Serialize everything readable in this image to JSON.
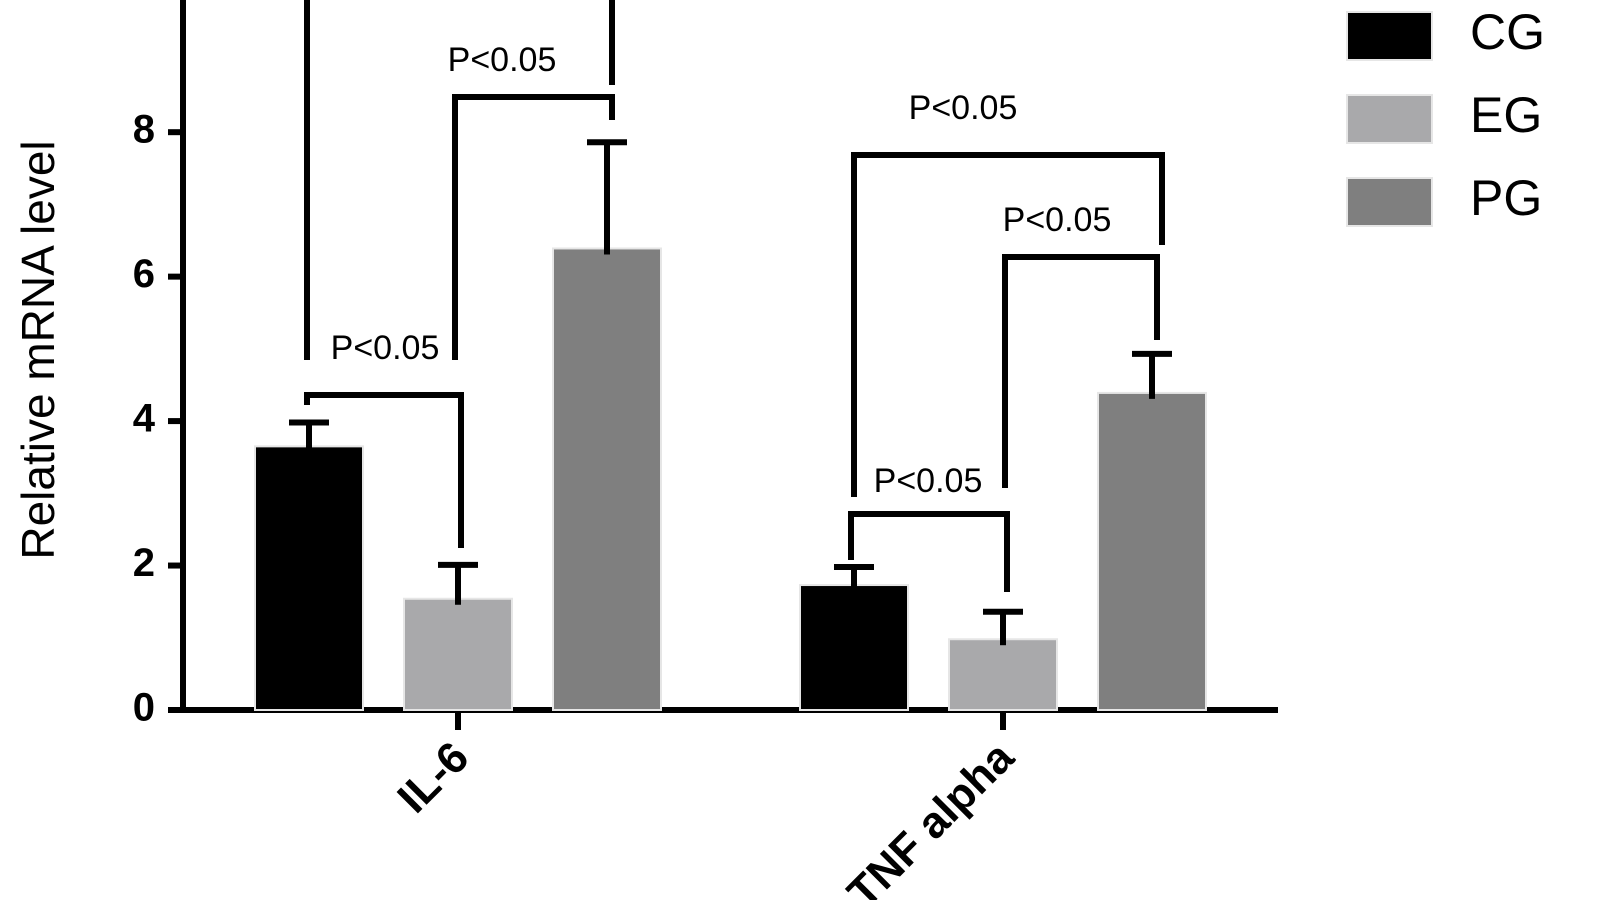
{
  "chart_data": {
    "type": "bar",
    "y_label": "Relative mRNA level",
    "categories": [
      "IL-6",
      "TNF alpha"
    ],
    "series": [
      {
        "name": "CG",
        "color": "#000000",
        "values": [
          3.65,
          1.73
        ],
        "errors": [
          0.33,
          0.25
        ]
      },
      {
        "name": "EG",
        "color": "#a9a9ab",
        "values": [
          1.54,
          0.98
        ],
        "errors": [
          0.47,
          0.38
        ]
      },
      {
        "name": "PG",
        "color": "#7f7f7f",
        "values": [
          6.39,
          4.39
        ],
        "errors": [
          1.47,
          0.54
        ]
      }
    ],
    "ylim": [
      0,
      9.83
    ],
    "yticks": [
      0,
      2,
      4,
      6,
      8
    ],
    "annotations": [
      "P<0.05",
      "P<0.05",
      "P<0.05",
      "P<0.05",
      "P<0.05"
    ],
    "legend": "top-right"
  }
}
